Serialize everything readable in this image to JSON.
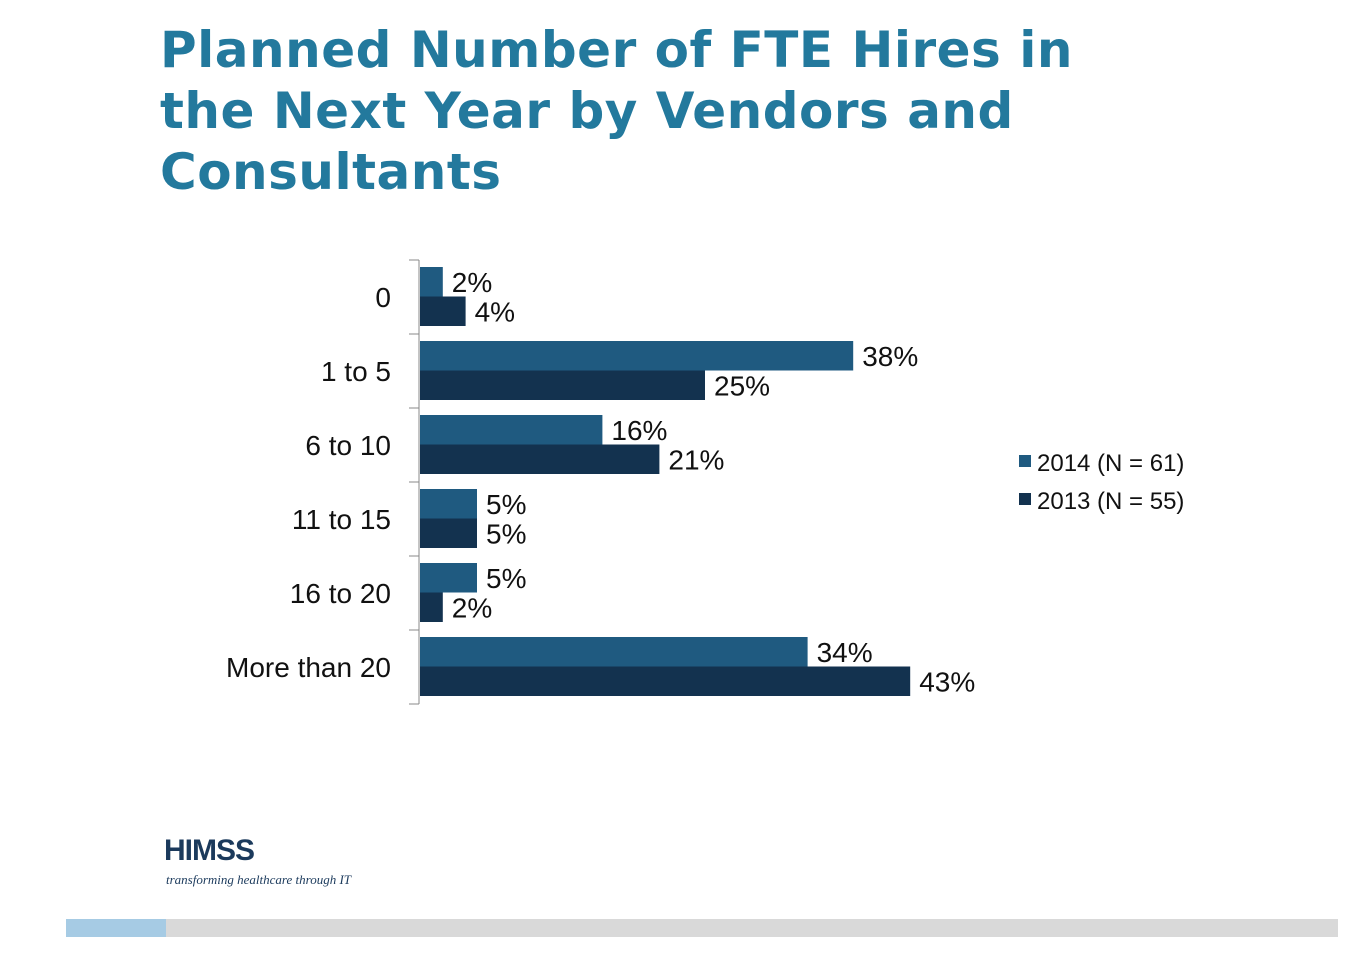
{
  "title": "Planned Number of FTE Hires in the Next Year by Vendors and Consultants",
  "chart_data": {
    "type": "bar",
    "orientation": "horizontal",
    "categories": [
      "0",
      "1 to 5",
      "6 to 10",
      "11 to 15",
      "16 to 20",
      "More than 20"
    ],
    "series": [
      {
        "name": "2014 (N = 61)",
        "color": "#1f5a80",
        "values": [
          2,
          38,
          16,
          5,
          5,
          34
        ],
        "labels": [
          "2%",
          "38%",
          "16%",
          "5%",
          "5%",
          "34%"
        ]
      },
      {
        "name": "2013 (N = 55)",
        "color": "#13324f",
        "values": [
          4,
          25,
          21,
          5,
          2,
          43
        ],
        "labels": [
          "4%",
          "25%",
          "21%",
          "5%",
          "2%",
          "43%"
        ]
      }
    ],
    "xlim": [
      0,
      45
    ],
    "legend_position": "right",
    "grid": false
  },
  "logo": {
    "name": "HIMSS",
    "tagline": "transforming healthcare through IT"
  },
  "colors": {
    "title": "#23799d",
    "footer_bar": "#d9d9d9",
    "footer_accent": "#a6cbe4"
  }
}
